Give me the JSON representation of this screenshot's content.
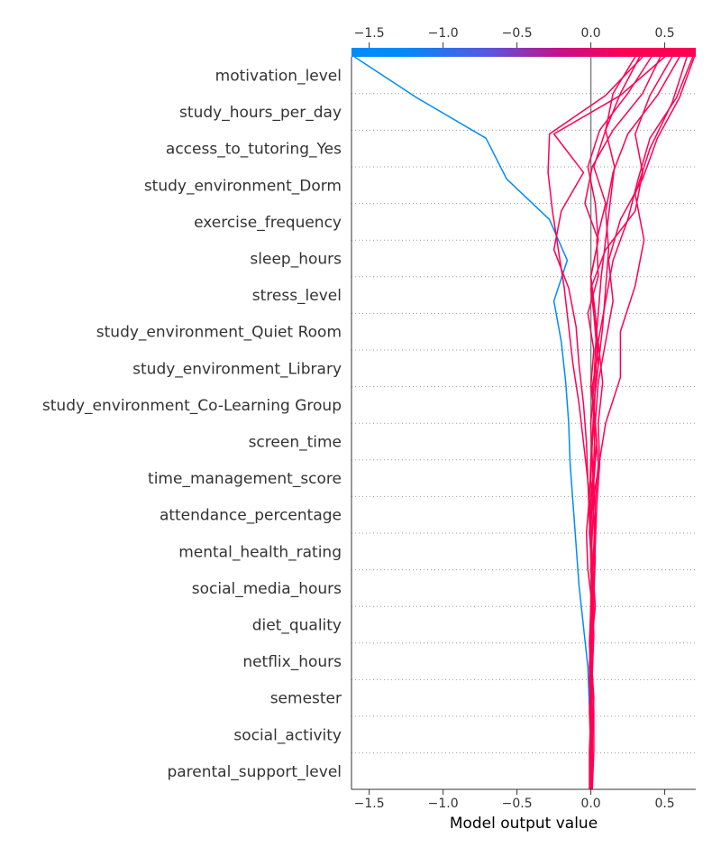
{
  "chart_data": {
    "type": "line",
    "subtype": "decision-plot",
    "title": "",
    "xlabel": "Model output value",
    "ylabel": "",
    "xlim": [
      -1.62,
      0.71
    ],
    "base_value": 0.0,
    "x_ticks": [
      -1.5,
      -1.0,
      -0.5,
      0.0,
      0.5
    ],
    "x_tick_labels": [
      "−1.5",
      "−1.0",
      "−0.5",
      "0.0",
      "0.5"
    ],
    "grid": "dotted horizontal lines between features",
    "colorbar": "top, blue (low) to red (high)",
    "colors": {
      "low": "#008bfb",
      "mid": "#a020b0",
      "high": "#ff0052",
      "base_line": "#808080",
      "text": "#333333"
    },
    "features": [
      "motivation_level",
      "study_hours_per_day",
      "access_to_tutoring_Yes",
      "study_environment_Dorm",
      "exercise_frequency",
      "sleep_hours",
      "stress_level",
      "study_environment_Quiet Room",
      "study_environment_Library",
      "study_environment_Co-Learning Group",
      "screen_time",
      "time_management_score",
      "attendance_percentage",
      "mental_health_rating",
      "social_media_hours",
      "diet_quality",
      "netflix_hours",
      "semester",
      "social_activity",
      "parental_support_level"
    ],
    "series": [
      {
        "color": "#008bfb",
        "values": [
          0.0,
          0.0,
          -0.01,
          -0.02,
          -0.05,
          -0.08,
          -0.1,
          -0.12,
          -0.14,
          -0.15,
          -0.17,
          -0.2,
          -0.25,
          -0.16,
          -0.28,
          -0.57,
          -0.71,
          -1.18,
          -1.6
        ]
      },
      {
        "color": "#ff0052",
        "values": [
          0.01,
          0.01,
          0.02,
          0.0,
          0.03,
          0.01,
          0.0,
          0.05,
          0.1,
          0.2,
          0.2,
          0.3,
          0.36,
          0.3,
          0.4,
          0.55,
          0.65
        ]
      },
      {
        "color": "#ff0052",
        "values": [
          0.0,
          0.0,
          0.0,
          -0.01,
          0.0,
          0.01,
          0.02,
          0.03,
          0.05,
          0.03,
          0.05,
          0.1,
          0.15,
          0.12,
          0.2,
          0.35,
          0.45,
          0.6,
          0.7
        ]
      },
      {
        "color": "#ff0052",
        "values": [
          0.01,
          0.01,
          0.01,
          0.0,
          0.01,
          0.02,
          0.03,
          0.04,
          0.06,
          0.05,
          0.08,
          0.05,
          0.1,
          0.15,
          0.25,
          0.32,
          0.4,
          0.58,
          0.69
        ]
      },
      {
        "color": "#ff0052",
        "values": [
          -0.01,
          -0.01,
          0.0,
          0.01,
          0.02,
          0.01,
          0.0,
          -0.01,
          -0.02,
          -0.03,
          -0.05,
          -0.08,
          -0.1,
          -0.15,
          -0.25,
          -0.2,
          -0.05,
          -0.25,
          0.2,
          0.5
        ]
      },
      {
        "color": "#ff0052",
        "values": [
          0.0,
          0.0,
          -0.01,
          0.0,
          0.01,
          0.02,
          0.01,
          0.0,
          -0.02,
          -0.05,
          -0.08,
          -0.12,
          -0.15,
          -0.18,
          -0.22,
          -0.26,
          -0.29,
          -0.28,
          0.1,
          0.35
        ]
      },
      {
        "color": "#ff0052",
        "values": [
          0.01,
          0.02,
          0.02,
          0.01,
          0.0,
          0.02,
          0.03,
          0.02,
          0.0,
          0.01,
          0.02,
          0.05,
          0.08,
          0.1,
          0.12,
          0.1,
          0.15,
          0.25,
          0.45,
          0.6
        ]
      },
      {
        "color": "#ff0052",
        "values": [
          0.0,
          0.01,
          0.0,
          -0.01,
          0.0,
          0.01,
          -0.02,
          -0.03,
          -0.01,
          0.0,
          0.02,
          0.01,
          0.05,
          0.03,
          0.0,
          0.05,
          0.03,
          -0.02,
          0.06,
          0.25,
          0.41
        ]
      },
      {
        "color": "#ff0052",
        "values": [
          0.0,
          0.0,
          0.01,
          0.0,
          -0.01,
          0.0,
          0.01,
          -0.01,
          0.0,
          0.03,
          0.02,
          0.03,
          0.04,
          0.02,
          0.0,
          0.05,
          -0.04,
          0.01,
          0.15,
          0.35,
          0.47
        ]
      },
      {
        "color": "#ff0052",
        "values": [
          0.01,
          0.01,
          0.0,
          0.0,
          0.01,
          0.02,
          0.0,
          0.01,
          0.02,
          0.01,
          0.0,
          0.02,
          0.03,
          0.05,
          0.07,
          0.1,
          0.13,
          0.16,
          0.1,
          0.15,
          0.3
        ]
      },
      {
        "color": "#ff0052",
        "values": [
          0.0,
          0.0,
          0.0,
          0.0,
          0.0,
          0.01,
          0.01,
          0.0,
          0.01,
          0.02,
          0.03,
          0.0,
          0.02,
          -0.02,
          0.05,
          0.04,
          0.1,
          0.02,
          0.1,
          0.2,
          0.33
        ]
      },
      {
        "color": "#ff0052",
        "values": [
          0.0,
          0.01,
          0.01,
          0.0,
          0.0,
          0.0,
          0.02,
          0.03,
          0.02,
          0.04,
          0.02,
          0.05,
          0.03,
          0.0,
          0.1,
          0.3,
          0.35,
          0.3,
          0.4,
          0.55
        ]
      }
    ]
  }
}
